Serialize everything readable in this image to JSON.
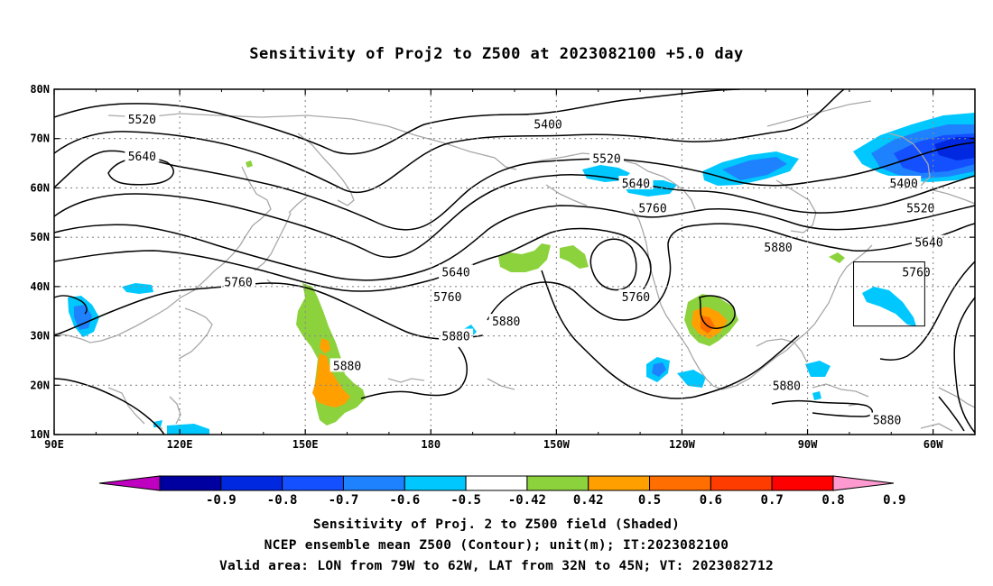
{
  "title": "Sensitivity of Proj2 to Z500 at 2023082100 +5.0 day",
  "axes": {
    "lon_labels": [
      "90E",
      "120E",
      "150E",
      "180",
      "150W",
      "120W",
      "90W",
      "60W"
    ],
    "lat_labels": [
      "80N",
      "70N",
      "60N",
      "50N",
      "40N",
      "30N",
      "20N",
      "10N"
    ]
  },
  "contour_labels": [
    {
      "text": "5520",
      "lon": 111,
      "lat": 74
    },
    {
      "text": "5640",
      "lon": 111,
      "lat": 66.5
    },
    {
      "text": "5400",
      "lon": 208,
      "lat": 73
    },
    {
      "text": "5520",
      "lon": 222,
      "lat": 66
    },
    {
      "text": "5640",
      "lon": 229,
      "lat": 61
    },
    {
      "text": "5760",
      "lon": 233,
      "lat": 56
    },
    {
      "text": "5400",
      "lon": 293,
      "lat": 61
    },
    {
      "text": "5520",
      "lon": 297,
      "lat": 56
    },
    {
      "text": "5640",
      "lon": 299,
      "lat": 49
    },
    {
      "text": "5760",
      "lon": 296,
      "lat": 43
    },
    {
      "text": "5880",
      "lon": 263,
      "lat": 48
    },
    {
      "text": "5640",
      "lon": 186,
      "lat": 43
    },
    {
      "text": "5760",
      "lon": 184,
      "lat": 38
    },
    {
      "text": "5760",
      "lon": 229,
      "lat": 38
    },
    {
      "text": "5880",
      "lon": 198,
      "lat": 33
    },
    {
      "text": "5880",
      "lon": 186,
      "lat": 30
    },
    {
      "text": "5760",
      "lon": 134,
      "lat": 41
    },
    {
      "text": "5880",
      "lon": 160,
      "lat": 24
    },
    {
      "text": "5880",
      "lon": 265,
      "lat": 20
    },
    {
      "text": "5880",
      "lon": 289,
      "lat": 13
    }
  ],
  "valid_area": {
    "lon_west": -79,
    "lon_east": -62,
    "lat_south": 32,
    "lat_north": 45
  },
  "colorbar": {
    "labels": [
      "-0.9",
      "-0.8",
      "-0.7",
      "-0.6",
      "-0.5",
      "-0.42",
      "0.42",
      "0.5",
      "0.6",
      "0.7",
      "0.8",
      "0.9"
    ],
    "colors": [
      "#c000c0",
      "#0000a0",
      "#0028e0",
      "#1450ff",
      "#1e82ff",
      "#00c8ff",
      "#ffffff",
      "#8cd23c",
      "#ffa000",
      "#ff6e00",
      "#ff3c00",
      "#ff0000",
      "#ff9ad0"
    ]
  },
  "captions": {
    "line1": "Sensitivity of Proj. 2 to Z500 field (Shaded)",
    "line2": "NCEP ensemble mean Z500 (Contour); unit(m); IT:2023082100",
    "line3": "Valid area: LON from 79W to 62W, LAT from 32N to 45N; VT: 2023082712"
  }
}
